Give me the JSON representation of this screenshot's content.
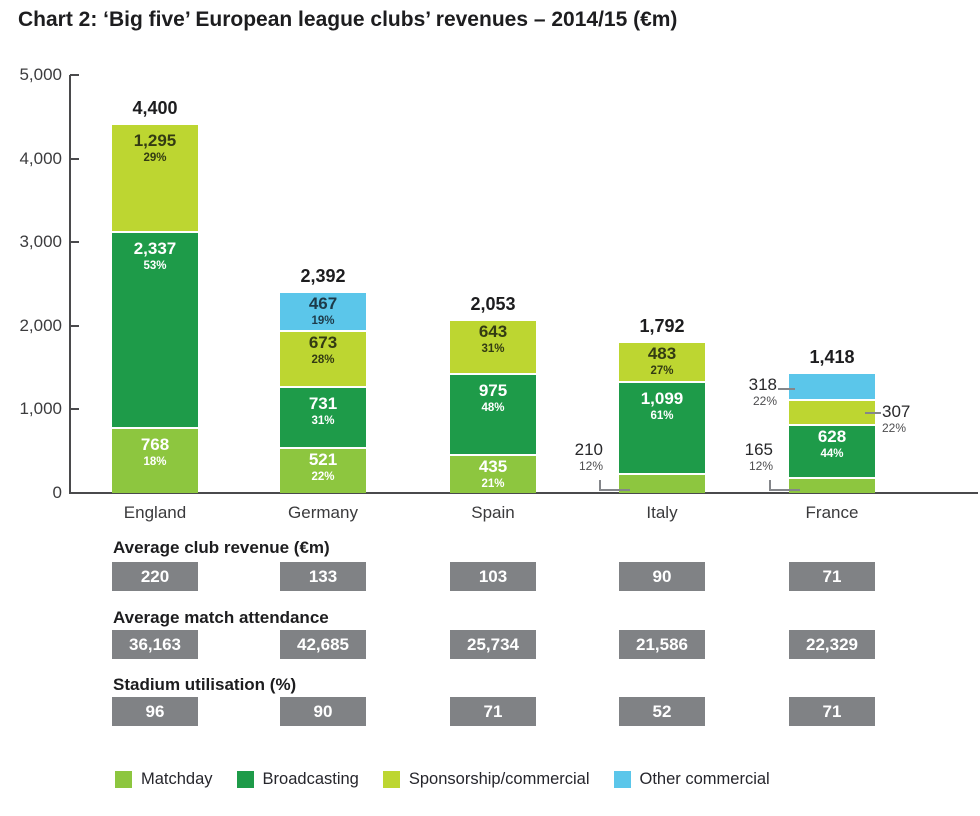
{
  "title": "Chart 2: ‘Big five’ European league clubs’ revenues – 2014/15 (€m)",
  "chart_data": {
    "type": "bar",
    "stacked": true,
    "title": "Chart 2: ‘Big five’ European league clubs’ revenues – 2014/15 (€m)",
    "ylim": [
      0,
      5000
    ],
    "grid": false,
    "y_ticks": [
      {
        "value": 5000,
        "label": "5,000"
      },
      {
        "value": 4000,
        "label": "4,000"
      },
      {
        "value": 3000,
        "label": "3,000"
      },
      {
        "value": 2000,
        "label": "2,000"
      },
      {
        "value": 1000,
        "label": "1,000"
      },
      {
        "value": 0,
        "label": "0"
      }
    ],
    "categories": [
      "England",
      "Germany",
      "Spain",
      "Italy",
      "France"
    ],
    "series_colors": {
      "matchday": "#8dc63f",
      "broadcasting": "#1e9b49",
      "sponsorship": "#bdd631",
      "other_commercial": "#5bc6ea"
    },
    "segment_text_colors": {
      "matchday": "#ffffff",
      "broadcasting": "#ffffff",
      "sponsorship": "#333b13",
      "other_commercial": "#1d3a49"
    },
    "bars": [
      {
        "country": "England",
        "total": 4400,
        "total_label": "4,400",
        "segments": [
          {
            "key": "sponsorship",
            "value": 1295,
            "value_label": "1,295",
            "pct": "29%",
            "label_pos": "inside"
          },
          {
            "key": "broadcasting",
            "value": 2337,
            "value_label": "2,337",
            "pct": "53%",
            "label_pos": "inside"
          },
          {
            "key": "matchday",
            "value": 768,
            "value_label": "768",
            "pct": "18%",
            "label_pos": "inside"
          }
        ]
      },
      {
        "country": "Germany",
        "total": 2392,
        "total_label": "2,392",
        "segments": [
          {
            "key": "other_commercial",
            "value": 467,
            "value_label": "467",
            "pct": "19%",
            "label_pos": "inside"
          },
          {
            "key": "sponsorship",
            "value": 673,
            "value_label": "673",
            "pct": "28%",
            "label_pos": "inside"
          },
          {
            "key": "broadcasting",
            "value": 731,
            "value_label": "731",
            "pct": "31%",
            "label_pos": "inside"
          },
          {
            "key": "matchday",
            "value": 521,
            "value_label": "521",
            "pct": "22%",
            "label_pos": "inside"
          }
        ]
      },
      {
        "country": "Spain",
        "total": 2053,
        "total_label": "2,053",
        "segments": [
          {
            "key": "sponsorship",
            "value": 643,
            "value_label": "643",
            "pct": "31%",
            "label_pos": "inside"
          },
          {
            "key": "broadcasting",
            "value": 975,
            "value_label": "975",
            "pct": "48%",
            "label_pos": "inside"
          },
          {
            "key": "matchday",
            "value": 435,
            "value_label": "435",
            "pct": "21%",
            "label_pos": "inside"
          }
        ]
      },
      {
        "country": "Italy",
        "total": 1792,
        "total_label": "1,792",
        "segments": [
          {
            "key": "sponsorship",
            "value": 483,
            "value_label": "483",
            "pct": "27%",
            "label_pos": "inside"
          },
          {
            "key": "broadcasting",
            "value": 1099,
            "value_label": "1,099",
            "pct": "61%",
            "label_pos": "inside"
          },
          {
            "key": "matchday",
            "value": 210,
            "value_label": "210",
            "pct": "12%",
            "label_pos": "left-elbow"
          }
        ]
      },
      {
        "country": "France",
        "total": 1418,
        "total_label": "1,418",
        "segments": [
          {
            "key": "other_commercial",
            "value": 318,
            "value_label": "318",
            "pct": "22%",
            "label_pos": "left"
          },
          {
            "key": "sponsorship",
            "value": 307,
            "value_label": "307",
            "pct": "22%",
            "label_pos": "right"
          },
          {
            "key": "broadcasting",
            "value": 628,
            "value_label": "628",
            "pct": "44%",
            "label_pos": "inside"
          },
          {
            "key": "matchday",
            "value": 165,
            "value_label": "165",
            "pct": "12%",
            "label_pos": "left-elbow"
          }
        ]
      }
    ],
    "legend": [
      {
        "key": "matchday",
        "label": "Matchday"
      },
      {
        "key": "broadcasting",
        "label": "Broadcasting"
      },
      {
        "key": "sponsorship",
        "label": "Sponsorship/commercial"
      },
      {
        "key": "other_commercial",
        "label": "Other commercial"
      }
    ],
    "legend_position": "bottom"
  },
  "stats_rows": [
    {
      "label": "Average club revenue (€m)",
      "values": [
        "220",
        "133",
        "103",
        "90",
        "71"
      ]
    },
    {
      "label": "Average match attendance",
      "values": [
        "36,163",
        "42,685",
        "25,734",
        "21,586",
        "22,329"
      ]
    },
    {
      "label": "Stadium utilisation (%)",
      "values": [
        "96",
        "90",
        "71",
        "52",
        "71"
      ]
    }
  ]
}
